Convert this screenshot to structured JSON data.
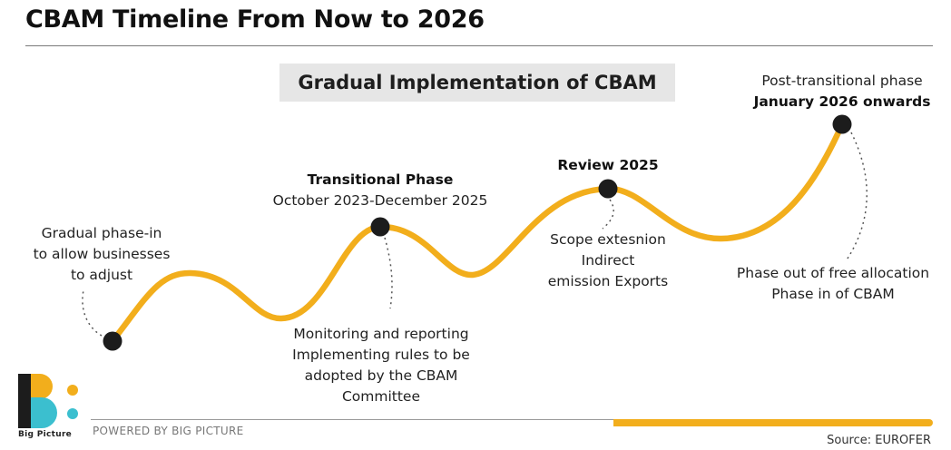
{
  "title": "CBAM Timeline From Now to 2026",
  "subtitle": "Gradual Implementation of CBAM",
  "stages": [
    {
      "lines": [
        "Gradual phase-in",
        "to allow businesses",
        "to adjust"
      ]
    },
    {
      "heading": "Transitional Phase",
      "date": "October 2023-December 2025",
      "details": [
        "Monitoring and reporting",
        "Implementing rules to be",
        "adopted by the CBAM",
        "Committee"
      ]
    },
    {
      "heading": "Review 2025",
      "details": [
        "Scope extesnion",
        "Indirect",
        "emission Exports"
      ]
    },
    {
      "pre": "Post-transitional phase",
      "heading": "January 2026 onwards",
      "details": [
        "Phase out of free allocation",
        "Phase in of CBAM"
      ]
    }
  ],
  "footer": {
    "powered": "POWERED BY BIG PICTURE",
    "source": "Source: EUROFER",
    "logo_text": "Big Picture"
  },
  "colors": {
    "curve": "#f2ae1c",
    "node": "#1c1c1c",
    "logo_teal": "#3bbfcf"
  }
}
